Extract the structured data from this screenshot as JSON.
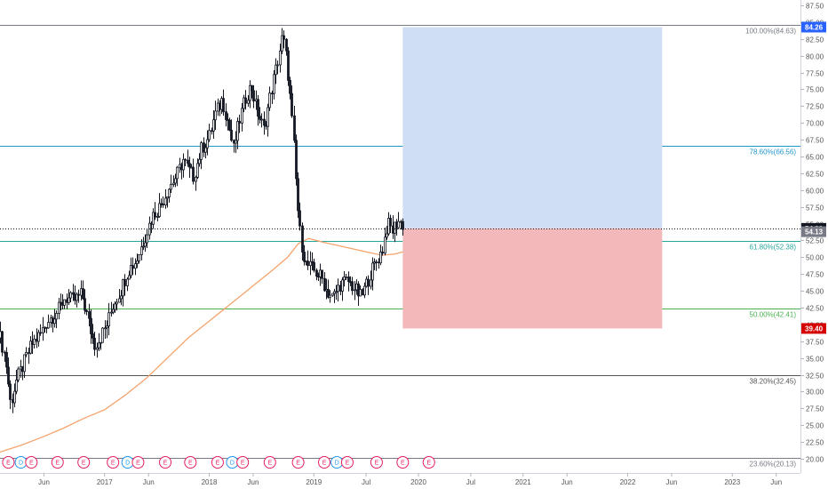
{
  "chart_data": {
    "type": "candlestick",
    "y_axis": {
      "position": "right",
      "range": [
        20.0,
        87.5
      ],
      "ticks": [
        "20.00",
        "22.50",
        "25.00",
        "27.50",
        "30.00",
        "32.50",
        "35.00",
        "37.50",
        "40.00",
        "42.50",
        "45.00",
        "47.50",
        "50.00",
        "52.50",
        "55.00",
        "57.50",
        "60.00",
        "62.50",
        "65.00",
        "67.50",
        "70.00",
        "72.50",
        "75.00",
        "77.50",
        "80.00",
        "82.50",
        "85.00",
        "87.50"
      ]
    },
    "x_axis": {
      "ticks": [
        {
          "label": "Jun",
          "t": 2016.42
        },
        {
          "label": "2017",
          "t": 2017.0
        },
        {
          "label": "Jun",
          "t": 2017.42
        },
        {
          "label": "2018",
          "t": 2018.0
        },
        {
          "label": "Jun",
          "t": 2018.42
        },
        {
          "label": "2019",
          "t": 2019.0
        },
        {
          "label": "Jul",
          "t": 2019.5
        },
        {
          "label": "2020",
          "t": 2020.0
        },
        {
          "label": "Jul",
          "t": 2020.5
        },
        {
          "label": "2021",
          "t": 2021.0
        },
        {
          "label": "Jun",
          "t": 2021.42
        },
        {
          "label": "2022",
          "t": 2022.0
        },
        {
          "label": "Jun",
          "t": 2022.42
        },
        {
          "label": "2023",
          "t": 2023.0
        },
        {
          "label": "Jun",
          "t": 2023.42
        }
      ],
      "range": [
        2016.0,
        2024.0
      ]
    },
    "price_path": [
      [
        2016.0,
        38.0
      ],
      [
        2016.05,
        35.0
      ],
      [
        2016.1,
        28.0
      ],
      [
        2016.15,
        31.5
      ],
      [
        2016.22,
        34.0
      ],
      [
        2016.3,
        37.0
      ],
      [
        2016.38,
        38.5
      ],
      [
        2016.45,
        40.5
      ],
      [
        2016.55,
        42.0
      ],
      [
        2016.62,
        44.0
      ],
      [
        2016.7,
        43.5
      ],
      [
        2016.78,
        44.5
      ],
      [
        2016.85,
        40.0
      ],
      [
        2016.9,
        37.0
      ],
      [
        2016.95,
        37.8
      ],
      [
        2017.02,
        40.0
      ],
      [
        2017.08,
        43.0
      ],
      [
        2017.15,
        45.0
      ],
      [
        2017.22,
        48.0
      ],
      [
        2017.3,
        49.5
      ],
      [
        2017.38,
        53.0
      ],
      [
        2017.45,
        56.0
      ],
      [
        2017.52,
        57.5
      ],
      [
        2017.6,
        60.0
      ],
      [
        2017.68,
        62.0
      ],
      [
        2017.75,
        64.5
      ],
      [
        2017.8,
        63.0
      ],
      [
        2017.85,
        62.0
      ],
      [
        2017.92,
        66.0
      ],
      [
        2018.0,
        68.0
      ],
      [
        2018.05,
        71.0
      ],
      [
        2018.12,
        73.5
      ],
      [
        2018.18,
        70.0
      ],
      [
        2018.23,
        66.0
      ],
      [
        2018.28,
        70.0
      ],
      [
        2018.35,
        74.0
      ],
      [
        2018.4,
        75.5
      ],
      [
        2018.45,
        72.0
      ],
      [
        2018.52,
        69.0
      ],
      [
        2018.58,
        74.0
      ],
      [
        2018.65,
        79.0
      ],
      [
        2018.7,
        83.0
      ],
      [
        2018.74,
        79.0
      ],
      [
        2018.78,
        72.0
      ],
      [
        2018.81,
        66.0
      ],
      [
        2018.84,
        58.0
      ],
      [
        2018.87,
        53.0
      ],
      [
        2018.92,
        49.0
      ],
      [
        2019.0,
        48.0
      ],
      [
        2019.07,
        47.0
      ],
      [
        2019.12,
        45.0
      ],
      [
        2019.18,
        44.0
      ],
      [
        2019.25,
        46.0
      ],
      [
        2019.32,
        46.5
      ],
      [
        2019.38,
        45.5
      ],
      [
        2019.45,
        44.0
      ],
      [
        2019.5,
        46.0
      ],
      [
        2019.55,
        48.0
      ],
      [
        2019.6,
        49.5
      ],
      [
        2019.65,
        51.0
      ],
      [
        2019.7,
        55.0
      ],
      [
        2019.75,
        54.0
      ],
      [
        2019.8,
        55.5
      ],
      [
        2019.85,
        54.8
      ]
    ],
    "ma_path": [
      [
        2016.0,
        21.0
      ],
      [
        2016.2,
        22.0
      ],
      [
        2016.4,
        23.2
      ],
      [
        2016.6,
        24.5
      ],
      [
        2016.8,
        26.0
      ],
      [
        2017.0,
        27.3
      ],
      [
        2017.2,
        29.5
      ],
      [
        2017.4,
        32.0
      ],
      [
        2017.6,
        35.0
      ],
      [
        2017.8,
        38.0
      ],
      [
        2018.0,
        40.5
      ],
      [
        2018.2,
        43.0
      ],
      [
        2018.4,
        45.5
      ],
      [
        2018.6,
        48.0
      ],
      [
        2018.75,
        50.0
      ],
      [
        2018.85,
        52.0
      ],
      [
        2018.95,
        52.8
      ],
      [
        2019.1,
        52.2
      ],
      [
        2019.3,
        51.5
      ],
      [
        2019.5,
        50.8
      ],
      [
        2019.65,
        50.3
      ],
      [
        2019.78,
        50.5
      ],
      [
        2019.85,
        50.8
      ]
    ],
    "fib_levels": [
      {
        "label": "100.00%(84.63)",
        "value": 84.63,
        "color": "#787b86"
      },
      {
        "label": "78.60%(66.56)",
        "value": 66.56,
        "color": "#2196c9"
      },
      {
        "label": "61.80%(52.38)",
        "value": 52.38,
        "color": "#26a69a"
      },
      {
        "label": "50.00%(42.41)",
        "value": 42.41,
        "color": "#4caf50"
      },
      {
        "label": "38.20%(32.45)",
        "value": 32.45,
        "color": "#555555"
      },
      {
        "label": "23.60%(20.13)",
        "value": 20.13,
        "color": "#787b86"
      }
    ],
    "position": {
      "start_t": 2019.85,
      "end_t": 2022.33,
      "entry": 54.3,
      "target": 84.26,
      "stop": 39.4,
      "profit_color": "#cfdef5",
      "loss_color": "#f2b8ba"
    },
    "price_tags": [
      {
        "label": "84.26",
        "value": 84.26,
        "color": "#2962ff"
      },
      {
        "label": "54.30",
        "value": 54.3,
        "color": "#131722"
      },
      {
        "label": "54.13",
        "value": 53.8,
        "color": "#787b86"
      },
      {
        "label": "39.40",
        "value": 39.4,
        "color": "#d50000"
      }
    ],
    "current_price_line": 54.3,
    "events": [
      {
        "t": 2016.08,
        "label": "E"
      },
      {
        "t": 2016.2,
        "label": "D"
      },
      {
        "t": 2016.3,
        "label": "E"
      },
      {
        "t": 2016.55,
        "label": "E"
      },
      {
        "t": 2016.8,
        "label": "E"
      },
      {
        "t": 2017.08,
        "label": "E"
      },
      {
        "t": 2017.22,
        "label": "D"
      },
      {
        "t": 2017.32,
        "label": "E"
      },
      {
        "t": 2017.58,
        "label": "E"
      },
      {
        "t": 2017.82,
        "label": "E"
      },
      {
        "t": 2018.08,
        "label": "E"
      },
      {
        "t": 2018.22,
        "label": "D"
      },
      {
        "t": 2018.32,
        "label": "E"
      },
      {
        "t": 2018.58,
        "label": "E"
      },
      {
        "t": 2018.85,
        "label": "E"
      },
      {
        "t": 2019.1,
        "label": "E"
      },
      {
        "t": 2019.22,
        "label": "D"
      },
      {
        "t": 2019.32,
        "label": "E"
      },
      {
        "t": 2019.6,
        "label": "E"
      },
      {
        "t": 2019.85,
        "label": "E"
      },
      {
        "t": 2020.1,
        "label": "E"
      }
    ]
  },
  "colors": {
    "candle": "#131722",
    "ma": "#f6a36c",
    "event_e": "#e91e63",
    "event_d": "#2196f3",
    "axis": "#555555"
  }
}
